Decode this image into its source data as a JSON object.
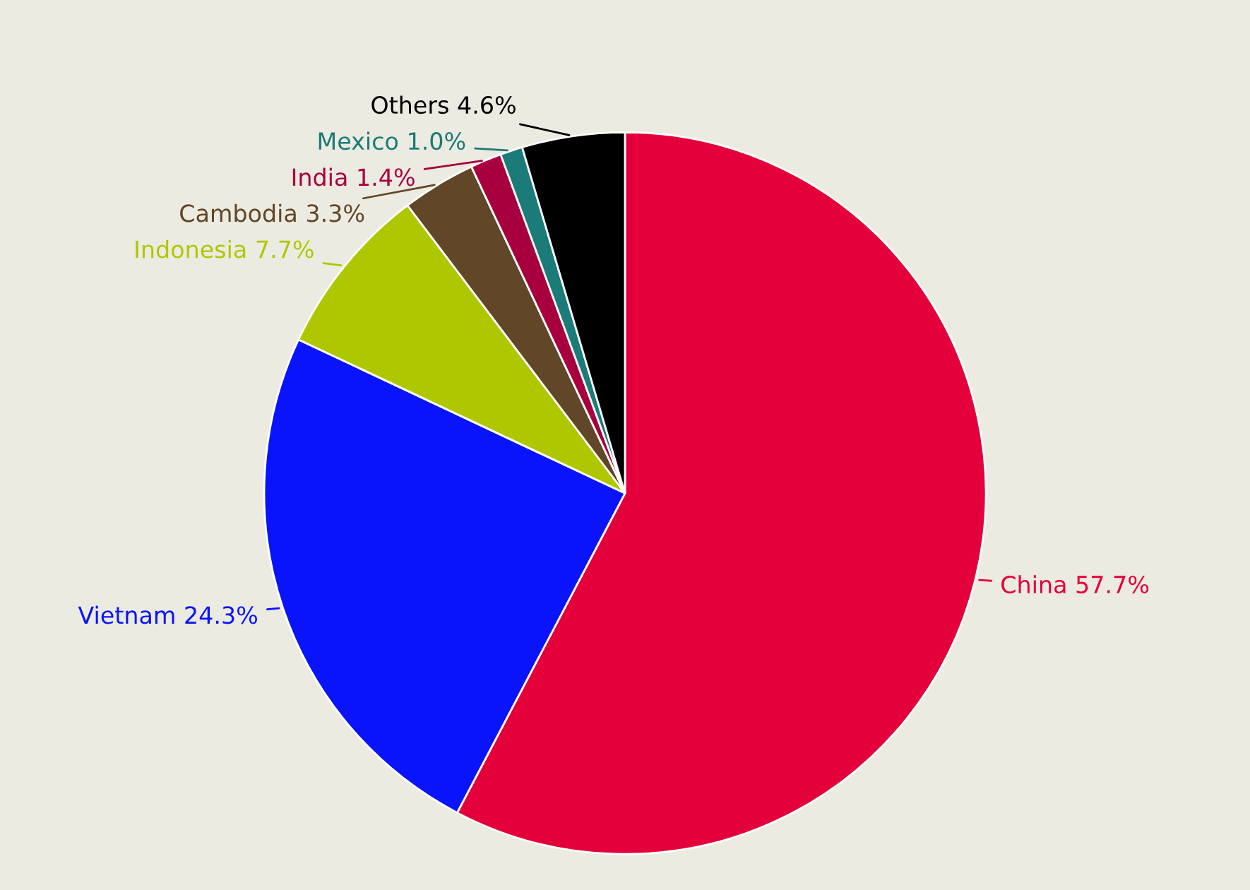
{
  "chart_data": {
    "type": "pie",
    "categories": [
      "China",
      "Vietnam",
      "Indonesia",
      "Cambodia",
      "India",
      "Mexico",
      "Others"
    ],
    "values": [
      57.7,
      24.3,
      7.7,
      3.3,
      1.4,
      1.0,
      4.6
    ],
    "colors": [
      "#e4003a",
      "#0a14fa",
      "#afc700",
      "#614628",
      "#a8003f",
      "#1b7b78",
      "#000000"
    ],
    "value_labels": [
      "57.7%",
      "24.3%",
      "7.7%",
      "3.3%",
      "1.4%",
      "1.0%",
      "4.6%"
    ]
  }
}
